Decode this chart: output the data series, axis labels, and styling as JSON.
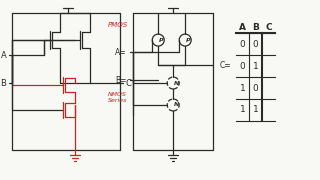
{
  "bg_color": "#f8f8f4",
  "line_color": "#2a2a2a",
  "red_color": "#cc2222",
  "pmos_label": "PMOS",
  "nmos_label": "NMOS\nSeries",
  "table_headers": [
    "A",
    "B",
    "C"
  ],
  "table_rows": [
    [
      "0",
      "0"
    ],
    [
      "0",
      "1"
    ],
    [
      "1",
      "0"
    ],
    [
      "1",
      "1"
    ]
  ]
}
